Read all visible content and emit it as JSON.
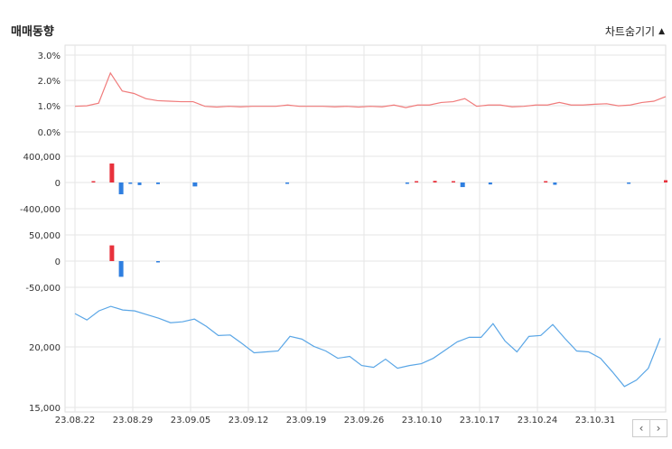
{
  "header": {
    "title": "매매동향",
    "toggle_label": "차트숨기기"
  },
  "nav": {
    "prev": "‹",
    "next": "›"
  },
  "colors": {
    "red": "#e8323c",
    "blue": "#2f7fe0",
    "line_red": "#f07b7b",
    "line_blue": "#5aa6e6",
    "grid": "#e6e6e6"
  },
  "chart_data": [
    {
      "type": "line",
      "ytick_labels": [
        "3.0%",
        "2.0%",
        "1.0%",
        "0.0%"
      ],
      "ylim": [
        0,
        3
      ],
      "series": [
        {
          "values": [
            1.0,
            1.02,
            1.12,
            2.3,
            1.6,
            1.5,
            1.3,
            1.22,
            1.2,
            1.18,
            1.18,
            1.0,
            0.97,
            1.0,
            0.98,
            1.0,
            1.0,
            1.0,
            1.05,
            1.0,
            1.0,
            1.0,
            0.98,
            1.0,
            0.97,
            1.0,
            0.98,
            1.05,
            0.95,
            1.05,
            1.05,
            1.15,
            1.18,
            1.3,
            1.0,
            1.05,
            1.05,
            0.98,
            1.0,
            1.05,
            1.05,
            1.15,
            1.05,
            1.05,
            1.08,
            1.1,
            1.02,
            1.05,
            1.15,
            1.2,
            1.38
          ]
        }
      ]
    },
    {
      "type": "bar",
      "ytick_labels": [
        "400,000",
        "0",
        "-400,000"
      ],
      "ylim": [
        -400000,
        400000
      ],
      "series": [
        {
          "values": [
            0,
            0,
            20000,
            0,
            290000,
            -180000,
            -20000,
            -40000,
            0,
            -25000,
            0,
            0,
            0,
            -60000,
            0,
            0,
            0,
            0,
            0,
            0,
            0,
            0,
            0,
            -15000,
            0,
            0,
            0,
            0,
            0,
            0,
            0,
            0,
            0,
            0,
            0,
            0,
            -10000,
            15000,
            0,
            25000,
            0,
            15000,
            -70000,
            0,
            0,
            -30000,
            0,
            0,
            0,
            0,
            0,
            20000,
            -35000,
            0,
            0,
            0,
            0,
            0,
            0,
            0,
            -10000,
            0,
            0,
            0,
            35000
          ]
        }
      ]
    },
    {
      "type": "bar",
      "ytick_labels": [
        "50,000",
        "0",
        "-50,000"
      ],
      "ylim": [
        -50000,
        50000
      ],
      "series": [
        {
          "values": [
            0,
            0,
            0,
            0,
            30000,
            -30000,
            0,
            0,
            0,
            -2000,
            0,
            0,
            0,
            0,
            0,
            0,
            0,
            0,
            0,
            0,
            0,
            0,
            0,
            0,
            0,
            0,
            0,
            0,
            0,
            0,
            0,
            0,
            0,
            0,
            0,
            0,
            0,
            0,
            0,
            0,
            0,
            0,
            0,
            0,
            0,
            0,
            0,
            0,
            0,
            0,
            0,
            0,
            0,
            0,
            0,
            0,
            0,
            0,
            0,
            0,
            0,
            0,
            0,
            0,
            0
          ]
        }
      ]
    },
    {
      "type": "line",
      "ytick_labels": [
        "20,000",
        "15,000"
      ],
      "ylim": [
        15000,
        27000
      ],
      "x_labels": [
        "23.08.22",
        "23.08.29",
        "23.09.05",
        "23.09.12",
        "23.09.19",
        "23.09.26",
        "23.10.10",
        "23.10.17",
        "23.10.24",
        "23.10.31"
      ],
      "series": [
        {
          "values": [
            25300,
            24600,
            25600,
            26100,
            25700,
            25600,
            25200,
            24800,
            24300,
            24400,
            24700,
            23900,
            22900,
            22950,
            22000,
            21000,
            21100,
            21200,
            22800,
            22500,
            21700,
            21200,
            20400,
            20600,
            19600,
            19400,
            20300,
            19300,
            19600,
            19800,
            20400,
            21300,
            22200,
            22700,
            22700,
            24200,
            22300,
            21100,
            22800,
            22900,
            24100,
            22600,
            21200,
            21100,
            20400,
            18900,
            17300,
            18000,
            19300,
            22600
          ]
        }
      ]
    }
  ]
}
